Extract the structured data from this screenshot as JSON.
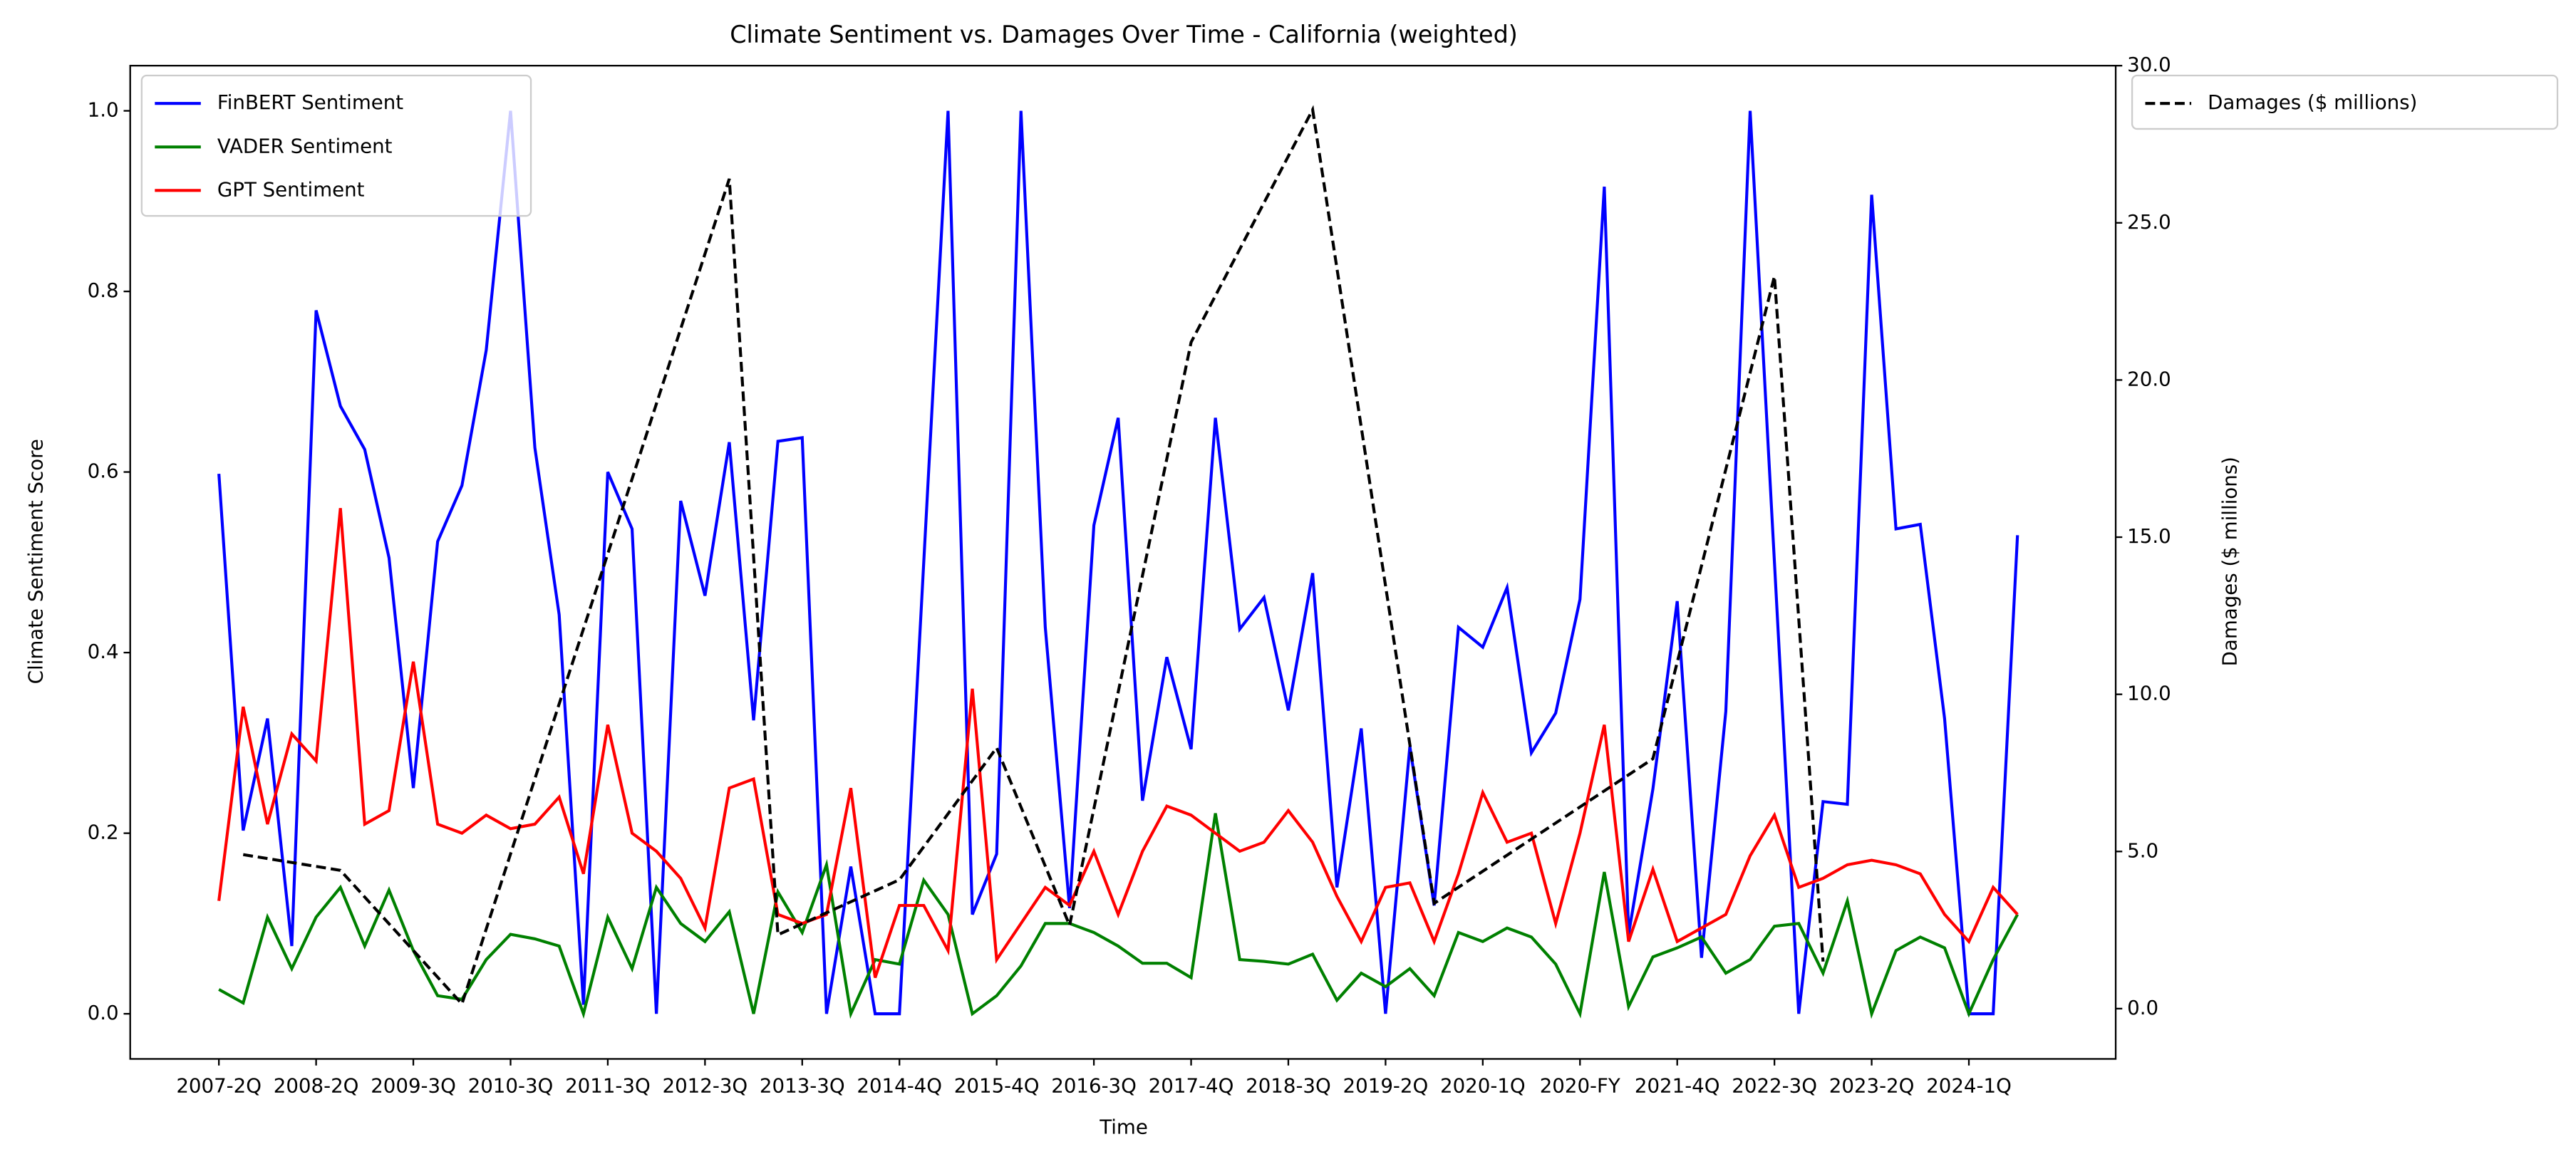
{
  "chart_data": {
    "type": "line",
    "title": "Climate Sentiment vs. Damages Over Time - California (weighted)",
    "x_label": "Time",
    "y_label": "Climate Sentiment Score",
    "y2_label": "Damages ($ millions)",
    "categories": [
      "2007-2Q",
      null,
      null,
      null,
      "2008-2Q",
      null,
      null,
      null,
      "2009-3Q",
      null,
      null,
      null,
      "2010-3Q",
      null,
      null,
      null,
      "2011-3Q",
      null,
      null,
      null,
      "2012-3Q",
      null,
      null,
      null,
      "2013-3Q",
      null,
      null,
      null,
      "2014-4Q",
      null,
      null,
      null,
      "2015-4Q",
      null,
      null,
      null,
      "2016-3Q",
      null,
      null,
      null,
      "2017-4Q",
      null,
      null,
      null,
      "2018-3Q",
      null,
      null,
      null,
      "2019-2Q",
      null,
      null,
      null,
      "2020-1Q",
      null,
      null,
      null,
      "2020-FY",
      null,
      null,
      null,
      "2021-4Q",
      null,
      null,
      null,
      "2022-3Q",
      null,
      null,
      null,
      "2023-2Q",
      null,
      null,
      null,
      "2024-1Q",
      null,
      null
    ],
    "series": [
      {
        "name": "FinBERT Sentiment",
        "color": "#0000ff",
        "values": [
          0.598,
          0.203,
          0.327,
          0.075,
          0.779,
          0.673,
          0.625,
          0.505,
          0.25,
          0.523,
          0.585,
          0.735,
          1.0,
          0.627,
          0.442,
          0.01,
          0.6,
          0.537,
          0.0,
          0.568,
          0.463,
          0.633,
          0.325,
          0.634,
          0.638,
          0.0,
          0.163,
          0.0,
          0.0,
          0.5,
          1.0,
          0.11,
          0.177,
          1.0,
          0.428,
          0.117,
          0.541,
          0.66,
          0.236,
          0.395,
          0.293,
          0.66,
          0.426,
          0.461,
          0.336,
          0.488,
          0.14,
          0.316,
          0.0,
          0.296,
          0.12,
          0.428,
          0.406,
          0.472,
          0.289,
          0.333,
          0.459,
          0.916,
          0.088,
          0.249,
          0.457,
          0.062,
          0.335,
          1.0,
          0.5,
          0.0,
          0.235,
          0.232,
          0.907,
          0.537,
          0.542,
          0.327,
          0.0,
          0.0,
          0.53
        ]
      },
      {
        "name": "VADER Sentiment",
        "color": "#008000",
        "values": [
          0.027,
          0.012,
          0.107,
          0.05,
          0.107,
          0.14,
          0.075,
          0.137,
          0.07,
          0.02,
          0.016,
          0.06,
          0.088,
          0.083,
          0.075,
          0.0,
          0.107,
          0.05,
          0.14,
          0.1,
          0.08,
          0.113,
          0.0,
          0.135,
          0.09,
          0.165,
          0.0,
          0.06,
          0.055,
          0.148,
          0.11,
          0.0,
          0.02,
          0.053,
          0.1,
          0.1,
          0.09,
          0.075,
          0.056,
          0.056,
          0.04,
          0.222,
          0.06,
          0.058,
          0.055,
          0.066,
          0.015,
          0.045,
          0.03,
          0.05,
          0.02,
          0.09,
          0.08,
          0.095,
          0.085,
          0.055,
          0.0,
          0.157,
          0.008,
          0.063,
          0.073,
          0.085,
          0.045,
          0.06,
          0.097,
          0.1,
          0.045,
          0.125,
          0.0,
          0.07,
          0.085,
          0.073,
          0.0,
          0.06,
          0.11
        ]
      },
      {
        "name": "GPT Sentiment",
        "color": "#ff0000",
        "values": [
          0.125,
          0.34,
          0.21,
          0.31,
          0.28,
          0.56,
          0.21,
          0.225,
          0.39,
          0.21,
          0.2,
          0.22,
          0.205,
          0.21,
          0.24,
          0.155,
          0.32,
          0.2,
          0.18,
          0.15,
          0.095,
          0.25,
          0.26,
          0.11,
          0.1,
          0.11,
          0.25,
          0.04,
          0.12,
          0.12,
          0.07,
          0.36,
          0.06,
          0.1,
          0.14,
          0.12,
          0.18,
          0.11,
          0.18,
          0.23,
          0.22,
          0.2,
          0.18,
          0.19,
          0.225,
          0.19,
          0.13,
          0.08,
          0.14,
          0.145,
          0.08,
          0.155,
          0.245,
          0.19,
          0.2,
          0.1,
          0.2,
          0.32,
          0.08,
          0.16,
          0.08,
          0.095,
          0.11,
          0.175,
          0.22,
          0.14,
          0.15,
          0.165,
          0.17,
          0.165,
          0.155,
          0.11,
          0.08,
          0.14,
          0.11
        ]
      },
      {
        "name": "Damages ($ millions)",
        "color": "#000000",
        "dashed": true,
        "axis": "y2",
        "connect_gaps": true,
        "values": [
          null,
          4.9,
          null,
          null,
          null,
          4.4,
          null,
          null,
          null,
          null,
          0.15,
          null,
          null,
          null,
          null,
          null,
          null,
          null,
          null,
          null,
          null,
          26.4,
          null,
          2.35,
          null,
          null,
          null,
          null,
          4.1,
          null,
          null,
          null,
          8.3,
          null,
          null,
          2.65,
          null,
          null,
          null,
          null,
          21.2,
          null,
          null,
          null,
          null,
          28.6,
          null,
          null,
          null,
          null,
          3.35,
          null,
          null,
          null,
          null,
          null,
          null,
          null,
          null,
          7.95,
          null,
          null,
          null,
          null,
          23.3,
          null,
          1.5,
          null,
          null,
          null,
          null,
          null,
          null,
          null,
          null
        ]
      }
    ],
    "ylim": [
      -0.05,
      1.05
    ],
    "yticks": [
      {
        "value": 0,
        "label": "0.0"
      },
      0.2,
      0.4,
      0.6,
      0.8,
      {
        "value": 1,
        "label": "1.0"
      }
    ],
    "y2lim": [
      -1.6,
      30.0
    ],
    "y2ticks": [
      {
        "value": 0,
        "label": "0.0"
      },
      {
        "value": 5,
        "label": "5.0"
      },
      {
        "value": 10,
        "label": "10.0"
      },
      {
        "value": 15,
        "label": "15.0"
      },
      {
        "value": 20,
        "label": "20.0"
      },
      {
        "value": 25,
        "label": "25.0"
      },
      {
        "value": 30,
        "label": "30.0"
      }
    ],
    "grid": false,
    "legend": "upper left",
    "legend_y2": "outside upper right"
  }
}
